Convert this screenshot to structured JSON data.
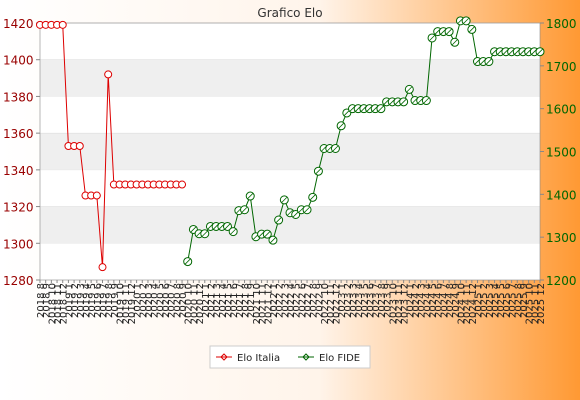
{
  "chart_data": {
    "type": "line",
    "title": "Grafico Elo",
    "x_labels": [
      "2018 8",
      "2018 9",
      "2018 10",
      "2018 11",
      "2018 12",
      "2019 1",
      "2019 2",
      "2019 3",
      "2019 4",
      "2019 5",
      "2019 6",
      "2019 7",
      "2019 8",
      "2019 9",
      "2019 10",
      "2019 11",
      "2019 12",
      "2020 1",
      "2020 2",
      "2020 3",
      "2020 4",
      "2020 5",
      "2020 6",
      "2020 7",
      "2020 8",
      "2020 9",
      "2020 10",
      "2020 11",
      "2020 12",
      "2021 1",
      "2021 2",
      "2021 3",
      "2021 4",
      "2021 5",
      "2021 6",
      "2021 7",
      "2021 8",
      "2021 9",
      "2021 10",
      "2021 11",
      "2021 12",
      "2022 1",
      "2022 2",
      "2022 3",
      "2022 4",
      "2022 5",
      "2022 6",
      "2022 7",
      "2022 8",
      "2022 9",
      "2022 10",
      "2022 11",
      "2022 12",
      "2023 1",
      "2023 2",
      "2023 3",
      "2023 4",
      "2023 5",
      "2023 6",
      "2023 7",
      "2023 8",
      "2023 9",
      "2023 10",
      "2023 11",
      "2023 12",
      "2024 1",
      "2024 2",
      "2024 3",
      "2024 4",
      "2024 5",
      "2024 6",
      "2024 7",
      "2024 8",
      "2024 9",
      "2024 10",
      "2024 11",
      "2024 12",
      "2025 1",
      "2025 2",
      "2025 3",
      "2025 4",
      "2025 5",
      "2025 6",
      "2025 7",
      "2025 8",
      "2025 9",
      "2025 10",
      "2025 11",
      "2025 12"
    ],
    "y_left": {
      "ylim": [
        1280,
        1420
      ],
      "ticks": [
        1280,
        1300,
        1320,
        1340,
        1360,
        1380,
        1400,
        1420
      ]
    },
    "y_right": {
      "ylim": [
        1200,
        1800
      ],
      "ticks": [
        1200,
        1300,
        1400,
        1500,
        1600,
        1700,
        1800
      ]
    },
    "series": [
      {
        "name": "Elo Italia",
        "axis": "left",
        "color": "#dd0000",
        "values": [
          1419,
          1419,
          1419,
          1419,
          1419,
          1353,
          1353,
          1353,
          1326,
          1326,
          1326,
          1287,
          1392,
          1332,
          1332,
          1332,
          1332,
          1332,
          1332,
          1332,
          1332,
          1332,
          1332,
          1332,
          1332,
          1332
        ]
      },
      {
        "name": "Elo FIDE",
        "axis": "right",
        "color": "#006600",
        "values": [
          null,
          null,
          null,
          null,
          null,
          null,
          null,
          null,
          null,
          null,
          null,
          null,
          null,
          null,
          null,
          null,
          null,
          null,
          null,
          null,
          null,
          null,
          null,
          null,
          null,
          null,
          1243,
          1318,
          1308,
          1308,
          1325,
          1325,
          1325,
          1325,
          1313,
          1362,
          1364,
          1396,
          1301,
          1307,
          1307,
          1293,
          1340,
          1387,
          1357,
          1353,
          1364,
          1364,
          1393,
          1454,
          1507,
          1507,
          1507,
          1560,
          1590,
          1600,
          1600,
          1600,
          1600,
          1600,
          1600,
          1616,
          1616,
          1616,
          1616,
          1645,
          1619,
          1619,
          1619,
          1765,
          1780,
          1780,
          1780,
          1755,
          1805,
          1805,
          1785,
          1710,
          1710,
          1710,
          1733,
          1733,
          1733,
          1733,
          1733,
          1733,
          1733,
          1733,
          1733
        ]
      }
    ],
    "legend_position": "bottom",
    "grid": true,
    "colors": {
      "line_italia": "#dd0000",
      "line_fide": "#006600",
      "band": "#efefef",
      "bg_light": "#ffffff",
      "bg_orange": "#ff9933"
    }
  }
}
